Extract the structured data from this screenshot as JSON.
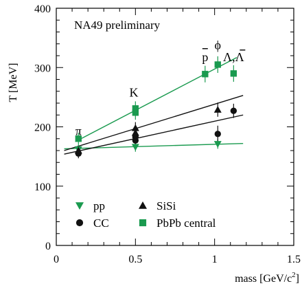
{
  "chart_data": {
    "type": "scatter",
    "annotation": "NA49 preliminary",
    "xlabel_main": "mass [GeV/c",
    "xlabel_sup": "2",
    "xlabel_close": "]",
    "ylabel": "T [MeV]",
    "xlim": [
      0,
      1.5
    ],
    "ylim": [
      0,
      400
    ],
    "x_ticks": [
      {
        "value": 0,
        "label": "0"
      },
      {
        "value": 0.5,
        "label": "0.5"
      },
      {
        "value": 1,
        "label": "1"
      },
      {
        "value": 1.5,
        "label": "1.5"
      }
    ],
    "y_ticks": [
      {
        "value": 0,
        "label": "0"
      },
      {
        "value": 100,
        "label": "100"
      },
      {
        "value": 200,
        "label": "200"
      },
      {
        "value": 300,
        "label": "300"
      },
      {
        "value": 400,
        "label": "400"
      }
    ],
    "particle_labels": [
      {
        "text": "π",
        "x": 0.14,
        "y": 186
      },
      {
        "text": "K",
        "x": 0.49,
        "y": 251
      },
      {
        "text": "p",
        "x": 0.94,
        "y": 311
      },
      {
        "text": "ϕ",
        "x": 1.02,
        "y": 331
      },
      {
        "text": "Λ,Λ",
        "x": 1.12,
        "y": 311
      }
    ],
    "colors": {
      "green": "#1a9a4f",
      "black": "#111111"
    },
    "series": [
      {
        "name": "pp",
        "marker": "triangle-down",
        "color": "green",
        "points": [
          {
            "x": 0.14,
            "y": 162,
            "err": 8
          },
          {
            "x": 0.5,
            "y": 166,
            "err": 8
          },
          {
            "x": 1.02,
            "y": 171,
            "err": 8
          }
        ],
        "fit": [
          [
            0.05,
            163
          ],
          [
            1.18,
            172
          ]
        ]
      },
      {
        "name": "CC",
        "marker": "circle",
        "color": "black",
        "points": [
          {
            "x": 0.14,
            "y": 155,
            "err": 8
          },
          {
            "x": 0.5,
            "y": 177,
            "err": 10
          },
          {
            "x": 0.5,
            "y": 183,
            "err": 10
          },
          {
            "x": 1.02,
            "y": 188,
            "err": 14
          },
          {
            "x": 1.12,
            "y": 227,
            "err": 12
          }
        ],
        "fit": [
          [
            0.05,
            154
          ],
          [
            1.18,
            220
          ]
        ]
      },
      {
        "name": "SiSi",
        "marker": "triangle-up",
        "color": "black",
        "points": [
          {
            "x": 0.14,
            "y": 160,
            "err": 8
          },
          {
            "x": 0.5,
            "y": 190,
            "err": 10
          },
          {
            "x": 0.5,
            "y": 198,
            "err": 10
          },
          {
            "x": 1.02,
            "y": 229,
            "err": 12
          }
        ],
        "fit": [
          [
            0.05,
            160
          ],
          [
            1.18,
            253
          ]
        ]
      },
      {
        "name": "PbPb central",
        "marker": "square",
        "color": "green",
        "points": [
          {
            "x": 0.14,
            "y": 180,
            "err": 10
          },
          {
            "x": 0.5,
            "y": 224,
            "err": 12
          },
          {
            "x": 0.5,
            "y": 231,
            "err": 12
          },
          {
            "x": 0.94,
            "y": 289,
            "err": 14
          },
          {
            "x": 1.02,
            "y": 305,
            "err": 14
          },
          {
            "x": 1.12,
            "y": 290,
            "err": 14
          }
        ],
        "fit": [
          [
            0.12,
            175
          ],
          [
            1.14,
            317
          ]
        ]
      }
    ]
  }
}
